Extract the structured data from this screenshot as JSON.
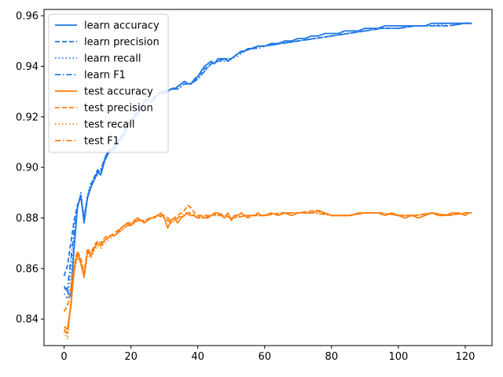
{
  "chart_data": {
    "type": "line",
    "title": "",
    "xlabel": "",
    "ylabel": "",
    "xlim": [
      -6,
      128
    ],
    "ylim": [
      0.8295,
      0.9625
    ],
    "xticks": [
      0,
      20,
      40,
      60,
      80,
      100,
      120
    ],
    "yticks": [
      0.84,
      0.86,
      0.88,
      0.9,
      0.92,
      0.94,
      0.96
    ],
    "ytick_labels": [
      "0.84",
      "0.86",
      "0.88",
      "0.90",
      "0.92",
      "0.94",
      "0.96"
    ],
    "grid": false,
    "legend_position": "top-left",
    "colors": {
      "learn": "#1f77e6",
      "test": "#ff7f0e"
    },
    "series": [
      {
        "name": "learn accuracy",
        "group": "learn",
        "style": "solid",
        "x": [
          0,
          1,
          2,
          3,
          4,
          5,
          6,
          7,
          8,
          9,
          10,
          11,
          12,
          13,
          14,
          15,
          16,
          17,
          18,
          19,
          20,
          21,
          22,
          23,
          24,
          25,
          26,
          27,
          28,
          29,
          30,
          31,
          32,
          33,
          34,
          35,
          36,
          37,
          38,
          39,
          40,
          41,
          42,
          43,
          44,
          45,
          46,
          47,
          48,
          49,
          50,
          51,
          52,
          53,
          54,
          55,
          56,
          57,
          58,
          59,
          60,
          62,
          64,
          66,
          68,
          70,
          72,
          74,
          76,
          78,
          80,
          82,
          84,
          86,
          88,
          90,
          92,
          94,
          96,
          98,
          100,
          102,
          104,
          106,
          108,
          110,
          112,
          114,
          116,
          118,
          120,
          121,
          122
        ],
        "y": [
          0.853,
          0.851,
          0.849,
          0.868,
          0.884,
          0.889,
          0.878,
          0.888,
          0.892,
          0.895,
          0.898,
          0.897,
          0.902,
          0.905,
          0.907,
          0.907,
          0.91,
          0.911,
          0.913,
          0.918,
          0.917,
          0.92,
          0.921,
          0.923,
          0.926,
          0.927,
          0.926,
          0.927,
          0.929,
          0.93,
          0.929,
          0.93,
          0.931,
          0.931,
          0.932,
          0.933,
          0.934,
          0.933,
          0.933,
          0.935,
          0.936,
          0.938,
          0.94,
          0.941,
          0.942,
          0.941,
          0.943,
          0.943,
          0.943,
          0.942,
          0.943,
          0.944,
          0.945,
          0.946,
          0.946,
          0.947,
          0.947,
          0.947,
          0.948,
          0.948,
          0.948,
          0.949,
          0.949,
          0.95,
          0.95,
          0.951,
          0.951,
          0.952,
          0.952,
          0.953,
          0.953,
          0.953,
          0.954,
          0.954,
          0.954,
          0.955,
          0.955,
          0.955,
          0.956,
          0.956,
          0.956,
          0.956,
          0.956,
          0.956,
          0.956,
          0.957,
          0.957,
          0.957,
          0.957,
          0.957,
          0.957,
          0.957,
          0.957
        ]
      },
      {
        "name": "learn precision",
        "group": "learn",
        "style": "dashed",
        "x": [
          0,
          1,
          2,
          3,
          4,
          5,
          6,
          7,
          8,
          9,
          10,
          11,
          12,
          13,
          14,
          15,
          16,
          17,
          18,
          19,
          20,
          21,
          22,
          23,
          24,
          25,
          26,
          27,
          28,
          29,
          30,
          32,
          34,
          36,
          38,
          40,
          42,
          44,
          46,
          48,
          50,
          52,
          54,
          56,
          58,
          60,
          65,
          70,
          75,
          80,
          85,
          90,
          95,
          100,
          105,
          110,
          115,
          120,
          122
        ],
        "y": [
          0.857,
          0.861,
          0.87,
          0.879,
          0.885,
          0.888,
          0.88,
          0.888,
          0.893,
          0.896,
          0.899,
          0.898,
          0.903,
          0.906,
          0.908,
          0.908,
          0.911,
          0.912,
          0.914,
          0.918,
          0.918,
          0.921,
          0.922,
          0.924,
          0.926,
          0.927,
          0.926,
          0.928,
          0.929,
          0.93,
          0.93,
          0.931,
          0.932,
          0.934,
          0.933,
          0.936,
          0.939,
          0.941,
          0.942,
          0.943,
          0.943,
          0.945,
          0.946,
          0.947,
          0.948,
          0.948,
          0.949,
          0.95,
          0.951,
          0.952,
          0.953,
          0.954,
          0.955,
          0.955,
          0.956,
          0.956,
          0.956,
          0.957,
          0.957
        ]
      },
      {
        "name": "learn recall",
        "group": "learn",
        "style": "dotted",
        "x": [
          0,
          1,
          2,
          3,
          4,
          5,
          6,
          7,
          8,
          9,
          10,
          11,
          12,
          13,
          14,
          15,
          16,
          17,
          18,
          19,
          20,
          21,
          22,
          23,
          24,
          25,
          26,
          27,
          28,
          29,
          30,
          32,
          34,
          36,
          38,
          40,
          42,
          44,
          46,
          48,
          50,
          52,
          54,
          56,
          58,
          60,
          65,
          70,
          75,
          80,
          85,
          90,
          95,
          100,
          105,
          110,
          115,
          120,
          122
        ],
        "y": [
          0.85,
          0.848,
          0.858,
          0.872,
          0.884,
          0.89,
          0.88,
          0.889,
          0.894,
          0.895,
          0.897,
          0.899,
          0.903,
          0.905,
          0.907,
          0.908,
          0.91,
          0.912,
          0.913,
          0.917,
          0.917,
          0.92,
          0.921,
          0.923,
          0.925,
          0.926,
          0.926,
          0.927,
          0.928,
          0.929,
          0.93,
          0.931,
          0.931,
          0.933,
          0.933,
          0.935,
          0.938,
          0.941,
          0.942,
          0.942,
          0.943,
          0.944,
          0.946,
          0.947,
          0.947,
          0.948,
          0.949,
          0.95,
          0.951,
          0.952,
          0.953,
          0.954,
          0.955,
          0.955,
          0.956,
          0.956,
          0.957,
          0.957,
          0.957
        ]
      },
      {
        "name": "learn F1",
        "group": "learn",
        "style": "dashdot",
        "x": [
          0,
          1,
          2,
          3,
          4,
          5,
          6,
          7,
          8,
          9,
          10,
          11,
          12,
          13,
          14,
          15,
          16,
          17,
          18,
          19,
          20,
          21,
          22,
          23,
          24,
          25,
          26,
          27,
          28,
          29,
          30,
          32,
          34,
          36,
          38,
          40,
          42,
          44,
          46,
          48,
          50,
          52,
          54,
          56,
          58,
          60,
          65,
          70,
          75,
          80,
          85,
          90,
          95,
          100,
          105,
          110,
          115,
          120,
          122
        ],
        "y": [
          0.852,
          0.852,
          0.863,
          0.875,
          0.884,
          0.889,
          0.879,
          0.888,
          0.893,
          0.896,
          0.898,
          0.899,
          0.903,
          0.906,
          0.907,
          0.908,
          0.91,
          0.912,
          0.913,
          0.917,
          0.918,
          0.92,
          0.921,
          0.923,
          0.926,
          0.927,
          0.926,
          0.927,
          0.929,
          0.93,
          0.93,
          0.931,
          0.931,
          0.933,
          0.933,
          0.935,
          0.938,
          0.941,
          0.942,
          0.943,
          0.943,
          0.945,
          0.946,
          0.947,
          0.948,
          0.948,
          0.949,
          0.95,
          0.951,
          0.952,
          0.953,
          0.954,
          0.955,
          0.955,
          0.956,
          0.956,
          0.956,
          0.957,
          0.957
        ]
      },
      {
        "name": "test accuracy",
        "group": "test",
        "style": "solid",
        "x": [
          0,
          1,
          2,
          3,
          4,
          5,
          6,
          7,
          8,
          9,
          10,
          11,
          12,
          13,
          14,
          15,
          16,
          17,
          18,
          19,
          20,
          21,
          22,
          23,
          24,
          25,
          26,
          27,
          28,
          29,
          30,
          31,
          32,
          33,
          34,
          35,
          36,
          37,
          38,
          39,
          40,
          41,
          42,
          43,
          44,
          45,
          46,
          47,
          48,
          49,
          50,
          51,
          52,
          53,
          54,
          55,
          56,
          57,
          58,
          59,
          60,
          62,
          64,
          66,
          68,
          70,
          72,
          74,
          76,
          78,
          80,
          82,
          84,
          86,
          88,
          90,
          92,
          94,
          96,
          98,
          100,
          102,
          104,
          106,
          108,
          110,
          112,
          114,
          116,
          118,
          120,
          121,
          122
        ],
        "y": [
          0.837,
          0.836,
          0.845,
          0.86,
          0.866,
          0.862,
          0.857,
          0.867,
          0.865,
          0.868,
          0.87,
          0.869,
          0.871,
          0.872,
          0.873,
          0.873,
          0.874,
          0.876,
          0.877,
          0.878,
          0.877,
          0.879,
          0.88,
          0.879,
          0.878,
          0.879,
          0.88,
          0.88,
          0.881,
          0.882,
          0.88,
          0.876,
          0.879,
          0.88,
          0.878,
          0.88,
          0.881,
          0.882,
          0.881,
          0.881,
          0.88,
          0.881,
          0.88,
          0.88,
          0.881,
          0.882,
          0.882,
          0.881,
          0.88,
          0.882,
          0.879,
          0.881,
          0.881,
          0.882,
          0.881,
          0.88,
          0.881,
          0.881,
          0.882,
          0.881,
          0.881,
          0.882,
          0.881,
          0.882,
          0.881,
          0.882,
          0.882,
          0.882,
          0.883,
          0.882,
          0.881,
          0.881,
          0.881,
          0.881,
          0.882,
          0.882,
          0.882,
          0.882,
          0.881,
          0.882,
          0.881,
          0.88,
          0.881,
          0.88,
          0.881,
          0.882,
          0.881,
          0.881,
          0.882,
          0.882,
          0.881,
          0.882,
          0.882
        ]
      },
      {
        "name": "test precision",
        "group": "test",
        "style": "dashed",
        "x": [
          0,
          1,
          2,
          3,
          4,
          5,
          6,
          7,
          8,
          9,
          10,
          11,
          12,
          13,
          14,
          15,
          16,
          17,
          18,
          19,
          20,
          22,
          24,
          26,
          28,
          30,
          32,
          34,
          36,
          37,
          38,
          39,
          40,
          42,
          44,
          46,
          48,
          50,
          55,
          60,
          65,
          70,
          75,
          80,
          85,
          90,
          95,
          100,
          105,
          110,
          115,
          120,
          122
        ],
        "y": [
          0.843,
          0.845,
          0.852,
          0.861,
          0.867,
          0.864,
          0.858,
          0.868,
          0.866,
          0.869,
          0.871,
          0.87,
          0.872,
          0.873,
          0.873,
          0.874,
          0.875,
          0.876,
          0.877,
          0.878,
          0.878,
          0.879,
          0.879,
          0.88,
          0.881,
          0.881,
          0.879,
          0.881,
          0.883,
          0.885,
          0.884,
          0.882,
          0.881,
          0.881,
          0.881,
          0.882,
          0.881,
          0.88,
          0.881,
          0.881,
          0.882,
          0.882,
          0.883,
          0.881,
          0.881,
          0.882,
          0.882,
          0.881,
          0.881,
          0.882,
          0.881,
          0.882,
          0.882
        ]
      },
      {
        "name": "test recall",
        "group": "test",
        "style": "dotted",
        "x": [
          0,
          1,
          2,
          3,
          4,
          5,
          6,
          7,
          8,
          9,
          10,
          11,
          12,
          13,
          14,
          15,
          16,
          17,
          18,
          19,
          20,
          22,
          24,
          26,
          28,
          30,
          32,
          34,
          36,
          38,
          40,
          42,
          44,
          46,
          48,
          50,
          55,
          60,
          65,
          70,
          75,
          80,
          85,
          90,
          95,
          100,
          105,
          110,
          115,
          120,
          122
        ],
        "y": [
          0.835,
          0.832,
          0.844,
          0.858,
          0.865,
          0.862,
          0.856,
          0.866,
          0.864,
          0.867,
          0.869,
          0.868,
          0.87,
          0.871,
          0.872,
          0.873,
          0.874,
          0.875,
          0.876,
          0.877,
          0.877,
          0.879,
          0.879,
          0.88,
          0.881,
          0.88,
          0.878,
          0.88,
          0.881,
          0.881,
          0.88,
          0.88,
          0.881,
          0.881,
          0.881,
          0.88,
          0.881,
          0.881,
          0.882,
          0.882,
          0.882,
          0.881,
          0.881,
          0.882,
          0.882,
          0.881,
          0.881,
          0.882,
          0.881,
          0.882,
          0.882
        ]
      },
      {
        "name": "test F1",
        "group": "test",
        "style": "dashdot",
        "x": [
          0,
          1,
          2,
          3,
          4,
          5,
          6,
          7,
          8,
          9,
          10,
          11,
          12,
          13,
          14,
          15,
          16,
          17,
          18,
          19,
          20,
          22,
          24,
          26,
          28,
          30,
          32,
          34,
          36,
          38,
          40,
          42,
          44,
          46,
          48,
          50,
          55,
          60,
          65,
          70,
          75,
          80,
          85,
          90,
          95,
          100,
          105,
          110,
          115,
          120,
          122
        ],
        "y": [
          0.836,
          0.834,
          0.846,
          0.859,
          0.866,
          0.863,
          0.857,
          0.867,
          0.865,
          0.868,
          0.87,
          0.869,
          0.871,
          0.872,
          0.873,
          0.873,
          0.874,
          0.875,
          0.876,
          0.877,
          0.877,
          0.879,
          0.879,
          0.88,
          0.881,
          0.88,
          0.878,
          0.88,
          0.882,
          0.882,
          0.88,
          0.88,
          0.881,
          0.881,
          0.881,
          0.88,
          0.881,
          0.881,
          0.882,
          0.882,
          0.882,
          0.881,
          0.881,
          0.882,
          0.882,
          0.881,
          0.881,
          0.882,
          0.881,
          0.882,
          0.882
        ]
      }
    ]
  }
}
